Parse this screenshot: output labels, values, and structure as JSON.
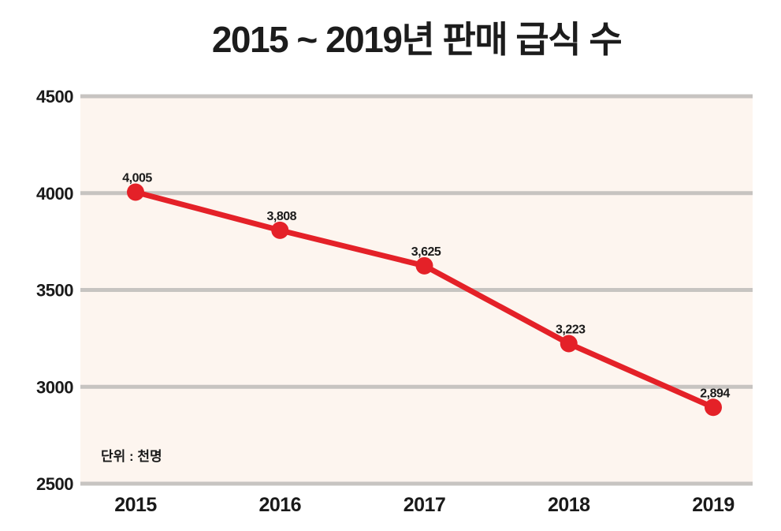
{
  "title": "2015 ~ 2019년 판매 급식 수",
  "chart_data": {
    "type": "line",
    "title": "2015 ~ 2019년 판매 급식 수",
    "categories": [
      "2015",
      "2016",
      "2017",
      "2018",
      "2019"
    ],
    "values": [
      4005,
      3808,
      3625,
      3223,
      2894
    ],
    "value_labels": [
      "4,005",
      "3,808",
      "3,625",
      "3,223",
      "2,894"
    ],
    "unit_label": "단위 : 천명",
    "xlabel": "",
    "ylabel": "",
    "y_ticks": [
      4500,
      4000,
      3500,
      3000,
      2500
    ],
    "ylim": [
      2500,
      4500
    ],
    "grid": true,
    "legend": "none",
    "marker": "filled-circle",
    "colors": {
      "line": "#e42128",
      "marker": "#e42128",
      "plot_background": "#fdf5ef",
      "gridline": "#c7c4c1",
      "text": "#1a1a1a",
      "page_background": "#ffffff"
    }
  }
}
